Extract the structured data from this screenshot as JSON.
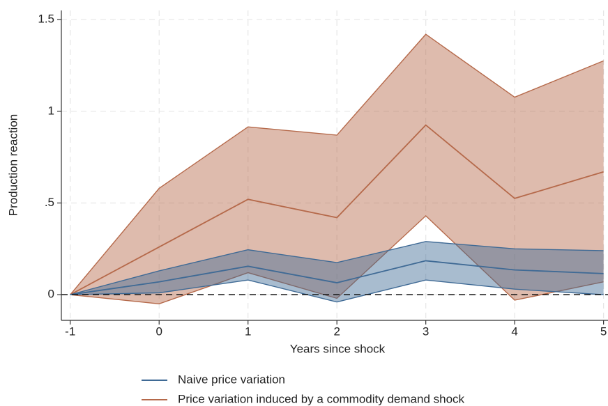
{
  "chart_data": {
    "type": "line-band",
    "x_label": "Years since shock",
    "y_label": "Production reaction",
    "x": [
      -1,
      0,
      1,
      2,
      3,
      4,
      5
    ],
    "series": [
      {
        "name": "Price variation induced by a commodity demand shock",
        "color": "#b5694a",
        "values": [
          0,
          0.26,
          0.52,
          0.42,
          0.925,
          0.525,
          0.67
        ],
        "lower": [
          0,
          -0.05,
          0.12,
          -0.02,
          0.43,
          -0.03,
          0.07
        ],
        "upper": [
          0,
          0.58,
          0.915,
          0.87,
          1.42,
          1.077,
          1.275
        ]
      },
      {
        "name": "Naive price variation",
        "color": "#3f6a95",
        "values": [
          0,
          0.07,
          0.155,
          0.065,
          0.185,
          0.135,
          0.115
        ],
        "lower": [
          0,
          0.01,
          0.08,
          -0.04,
          0.08,
          0.03,
          0
        ],
        "upper": [
          0,
          0.13,
          0.245,
          0.175,
          0.29,
          0.25,
          0.24
        ]
      }
    ],
    "legend_order": [
      1,
      0
    ],
    "reference_line": 0,
    "xlim": [
      -1.1,
      5.05
    ],
    "ylim": [
      -0.14,
      1.55
    ],
    "xticks": [
      -1,
      0,
      1,
      2,
      3,
      4,
      5
    ],
    "yticks": [
      0,
      {
        "value": 0.5,
        "label": ".5"
      },
      1,
      1.5
    ],
    "grid": true,
    "legend": "bottom"
  }
}
